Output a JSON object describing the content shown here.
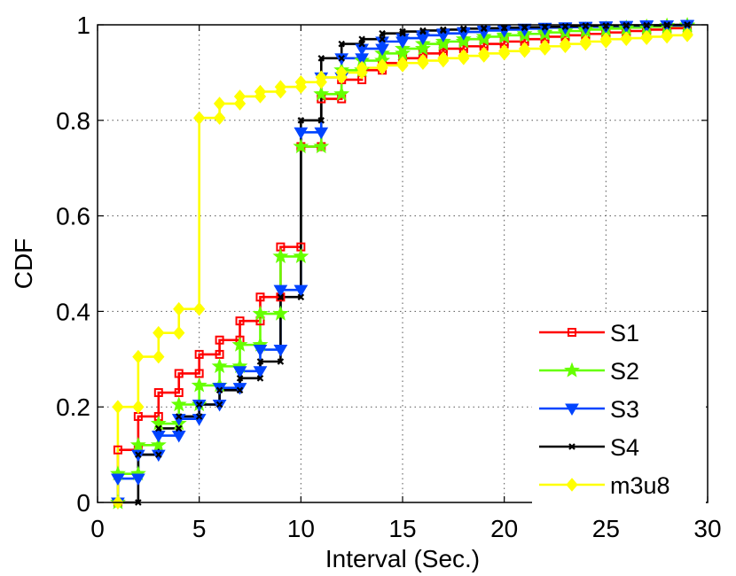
{
  "chart_data": {
    "type": "line",
    "step": true,
    "xlabel": "Interval (Sec.)",
    "ylabel": "CDF",
    "xlim": [
      0,
      30
    ],
    "ylim": [
      0,
      1
    ],
    "xticks": [
      0,
      5,
      10,
      15,
      20,
      25,
      30
    ],
    "yticks": [
      0,
      0.2,
      0.4,
      0.6,
      0.8,
      1
    ],
    "xtick_labels": [
      "0",
      "5",
      "10",
      "15",
      "20",
      "25",
      "30"
    ],
    "ytick_labels": [
      "0",
      "0.2",
      "0.4",
      "0.6",
      "0.8",
      "1"
    ],
    "grid": true,
    "legend_position": "bottom-right",
    "x": [
      1,
      2,
      3,
      4,
      5,
      6,
      7,
      8,
      9,
      10,
      11,
      12,
      13,
      14,
      15,
      16,
      17,
      18,
      19,
      20,
      21,
      22,
      23,
      24,
      25,
      26,
      27,
      28,
      29
    ],
    "series": [
      {
        "name": "S1",
        "color": "#ff0000",
        "marker": "square",
        "values": [
          0.11,
          0.18,
          0.23,
          0.27,
          0.31,
          0.34,
          0.38,
          0.43,
          0.535,
          0.745,
          0.845,
          0.885,
          0.905,
          0.92,
          0.93,
          0.94,
          0.95,
          0.955,
          0.96,
          0.965,
          0.97,
          0.975,
          0.978,
          0.981,
          0.984,
          0.987,
          0.99,
          0.993,
          0.995
        ]
      },
      {
        "name": "S2",
        "color": "#66ff00",
        "marker": "star",
        "values": [
          0.06,
          0.12,
          0.165,
          0.205,
          0.245,
          0.285,
          0.33,
          0.395,
          0.515,
          0.745,
          0.855,
          0.905,
          0.925,
          0.94,
          0.95,
          0.96,
          0.965,
          0.97,
          0.975,
          0.978,
          0.981,
          0.984,
          0.987,
          0.99,
          0.992,
          0.994,
          0.996,
          0.998,
          0.999
        ]
      },
      {
        "name": "S3",
        "color": "#0044ff",
        "marker": "triangle-down",
        "values": [
          0.05,
          0.1,
          0.14,
          0.175,
          0.205,
          0.24,
          0.275,
          0.32,
          0.445,
          0.775,
          0.89,
          0.93,
          0.95,
          0.965,
          0.972,
          0.978,
          0.982,
          0.985,
          0.988,
          0.99,
          0.992,
          0.994,
          0.995,
          0.996,
          0.997,
          0.998,
          0.999,
          0.999,
          1.0
        ]
      },
      {
        "name": "S4",
        "color": "#000000",
        "marker": "x",
        "values": [
          0.0,
          0.1,
          0.155,
          0.18,
          0.205,
          0.235,
          0.26,
          0.295,
          0.43,
          0.8,
          0.93,
          0.96,
          0.97,
          0.982,
          0.986,
          0.988,
          0.99,
          0.992,
          0.993,
          0.994,
          0.995,
          0.996,
          0.997,
          0.998,
          0.998,
          0.999,
          0.999,
          1.0,
          1.0
        ]
      },
      {
        "name": "m3u8",
        "color": "#ffff00",
        "marker": "diamond",
        "values": [
          0.2,
          0.305,
          0.355,
          0.405,
          0.805,
          0.835,
          0.85,
          0.86,
          0.87,
          0.88,
          0.89,
          0.9,
          0.91,
          0.915,
          0.92,
          0.925,
          0.93,
          0.935,
          0.94,
          0.945,
          0.95,
          0.955,
          0.96,
          0.965,
          0.97,
          0.972,
          0.975,
          0.978,
          0.98
        ]
      }
    ]
  }
}
